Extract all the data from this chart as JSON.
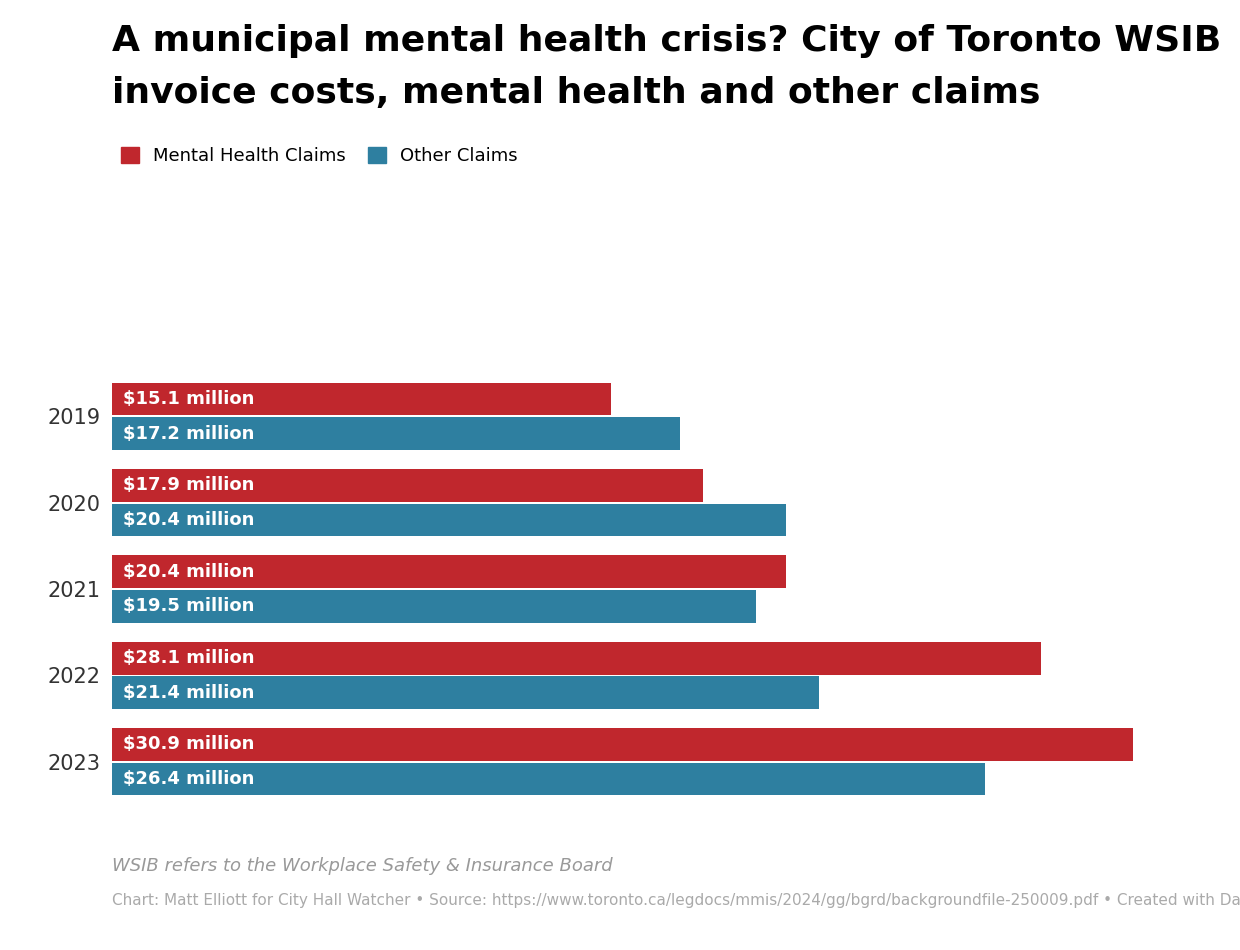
{
  "title_line1": "A municipal mental health crisis? City of Toronto WSIB",
  "title_line2": "invoice costs, mental health and other claims",
  "years": [
    "2019",
    "2020",
    "2021",
    "2022",
    "2023"
  ],
  "mental_health": [
    15.1,
    17.9,
    20.4,
    28.1,
    30.9
  ],
  "other_claims": [
    17.2,
    20.4,
    19.5,
    21.4,
    26.4
  ],
  "mental_health_labels": [
    "$15.1 million",
    "$17.9 million",
    "$20.4 million",
    "$28.1 million",
    "$30.9 million"
  ],
  "other_claims_labels": [
    "$17.2 million",
    "$20.4 million",
    "$19.5 million",
    "$21.4 million",
    "$26.4 million"
  ],
  "mental_health_color": "#C0272D",
  "other_claims_color": "#2E7FA0",
  "background_color": "#FFFFFF",
  "title_color": "#000000",
  "bar_text_color": "#FFFFFF",
  "legend_label_mh": "Mental Health Claims",
  "legend_label_oc": "Other Claims",
  "footnote1": "WSIB refers to the Workplace Safety & Insurance Board",
  "footnote2": "Chart: Matt Elliott for City Hall Watcher • Source: https://www.toronto.ca/legdocs/mmis/2024/gg/bgrd/backgroundfile-250009.pdf • Created with Datawrapper",
  "xlim": [
    0,
    33
  ],
  "bar_height": 0.38,
  "title_fontsize": 26,
  "bar_text_fontsize": 13,
  "legend_fontsize": 13,
  "footnote1_fontsize": 13,
  "footnote2_fontsize": 11,
  "year_label_fontsize": 15
}
